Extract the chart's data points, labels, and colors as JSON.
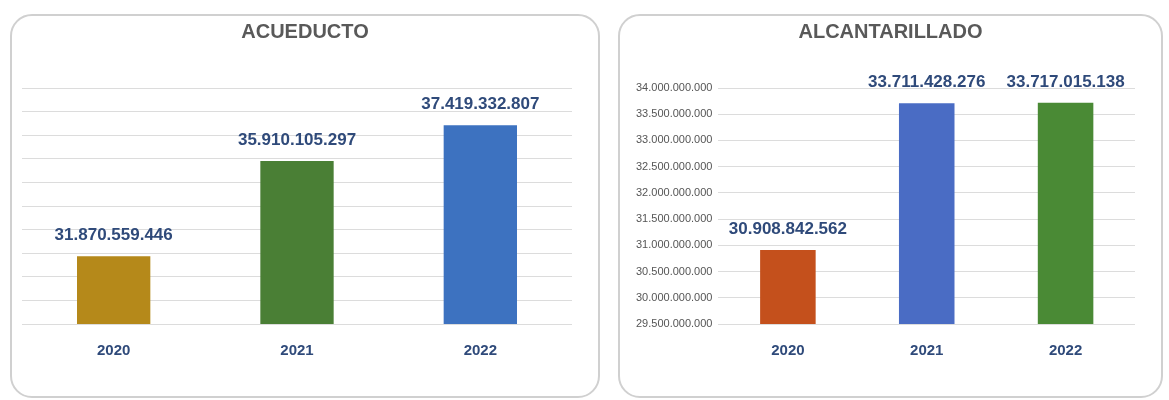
{
  "chart_data": [
    {
      "type": "bar",
      "title": "ACUEDUCTO",
      "categories": [
        "2020",
        "2021",
        "2022"
      ],
      "values": [
        31870559446,
        35910105297,
        37419332807
      ],
      "value_labels": [
        "31.870.559.446",
        "35.910.105.297",
        "37.419.332.807"
      ],
      "colors": [
        "#b5891a",
        "#4a7f35",
        "#3d72c0"
      ],
      "ylim": [
        29000000000,
        39000000000
      ],
      "yticks": [
        {
          "value": 29000000000,
          "label": null
        },
        {
          "value": 30000000000,
          "label": null
        },
        {
          "value": 31000000000,
          "label": null
        },
        {
          "value": 32000000000,
          "label": null
        },
        {
          "value": 33000000000,
          "label": null
        },
        {
          "value": 34000000000,
          "label": null
        },
        {
          "value": 35000000000,
          "label": null
        },
        {
          "value": 36000000000,
          "label": null
        },
        {
          "value": 37000000000,
          "label": null
        },
        {
          "value": 38000000000,
          "label": null
        },
        {
          "value": 39000000000,
          "label": null
        }
      ],
      "tick_labels": "x",
      "grid": "y",
      "legend": false
    },
    {
      "type": "bar",
      "title": "ALCANTARILLADO",
      "categories": [
        "2020",
        "2021",
        "2022"
      ],
      "values": [
        30908842562,
        33711428276,
        33717015138
      ],
      "value_labels": [
        "30.908.842.562",
        "33.711.428.276",
        "33.717.015.138"
      ],
      "colors": [
        "#c4501c",
        "#4a6cc4",
        "#4a8a35"
      ],
      "ylim": [
        29500000000,
        34000000000
      ],
      "yticks": [
        {
          "value": 29500000000,
          "label": "29.500.000.000"
        },
        {
          "value": 30000000000,
          "label": "30.000.000.000"
        },
        {
          "value": 30500000000,
          "label": "30.500.000.000"
        },
        {
          "value": 31000000000,
          "label": "31.000.000.000"
        },
        {
          "value": 31500000000,
          "label": "31.500.000.000"
        },
        {
          "value": 32000000000,
          "label": "32.000.000.000"
        },
        {
          "value": 32500000000,
          "label": "32.500.000.000"
        },
        {
          "value": 33000000000,
          "label": "33.000.000.000"
        },
        {
          "value": 33500000000,
          "label": "33.500.000.000"
        },
        {
          "value": 34000000000,
          "label": "34.000.000.000"
        }
      ],
      "grid": "y",
      "legend": false
    }
  ]
}
